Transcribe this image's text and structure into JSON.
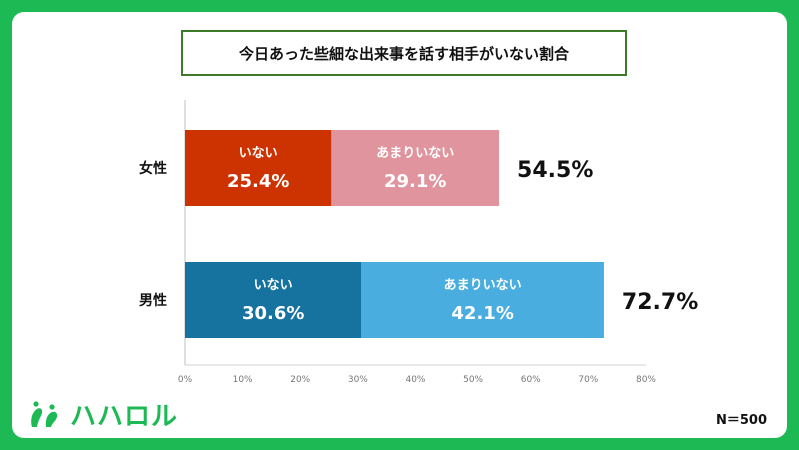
{
  "title": "今日あった些細な出来事を話す相手がいない割合",
  "brand": {
    "name": "ハハロル",
    "logo_icon": "footprint-logo-icon"
  },
  "sample_size": "N＝500",
  "chart_data": {
    "type": "bar",
    "orientation": "horizontal",
    "stacked": true,
    "categories": [
      "女性",
      "男性"
    ],
    "series": [
      {
        "name": "いない",
        "values": [
          25.4,
          30.6
        ],
        "colors": [
          "#cc3300",
          "#16729e"
        ]
      },
      {
        "name": "あまりいない",
        "values": [
          29.1,
          42.1
        ],
        "colors": [
          "#e0959e",
          "#4aade0"
        ]
      }
    ],
    "value_labels": [
      [
        "25.4%",
        "30.6%"
      ],
      [
        "29.1%",
        "42.1%"
      ]
    ],
    "totals": [
      54.5,
      72.7
    ],
    "total_labels": [
      "54.5%",
      "72.7%"
    ],
    "xlim": [
      0,
      80
    ],
    "x_ticks": [
      0,
      10,
      20,
      30,
      40,
      50,
      60,
      70,
      80
    ],
    "x_tick_labels": [
      "0%",
      "10%",
      "20%",
      "30%",
      "40%",
      "50%",
      "60%",
      "70%",
      "80%"
    ],
    "grid": false
  }
}
